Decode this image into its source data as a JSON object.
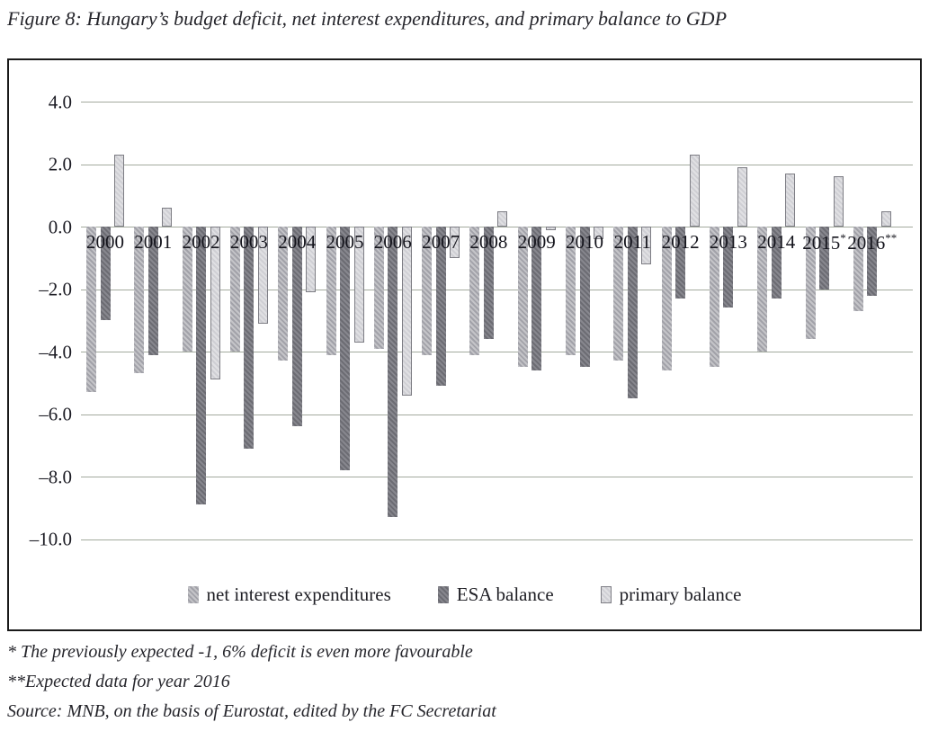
{
  "figure_title": "Figure 8: Hungary’s budget deficit, net interest expenditures, and primary balance to GDP",
  "chart_data": {
    "type": "bar",
    "title": "",
    "xlabel": "",
    "ylabel": "",
    "categories": [
      "2000",
      "2001",
      "2002",
      "2003",
      "2004",
      "2005",
      "2006",
      "2007",
      "2008",
      "2009",
      "2010",
      "2011",
      "2012",
      "2013",
      "2014",
      "2015*",
      "2016**"
    ],
    "series": [
      {
        "name": "net interest expenditures",
        "values": [
          -5.3,
          -4.7,
          -4.0,
          -4.0,
          -4.3,
          -4.1,
          -3.9,
          -4.1,
          -4.1,
          -4.5,
          -4.1,
          -4.3,
          -4.6,
          -4.5,
          -4.0,
          -3.6,
          -2.7
        ]
      },
      {
        "name": "ESA balance",
        "values": [
          -3.0,
          -4.1,
          -8.9,
          -7.1,
          -6.4,
          -7.8,
          -9.3,
          -5.1,
          -3.6,
          -4.6,
          -4.5,
          -5.5,
          -2.3,
          -2.6,
          -2.3,
          -2.0,
          -2.2
        ]
      },
      {
        "name": "primary balance",
        "values": [
          2.3,
          0.6,
          -4.9,
          -3.1,
          -2.1,
          -3.7,
          -5.4,
          -1.0,
          0.5,
          -0.1,
          -0.4,
          -1.2,
          2.3,
          1.9,
          1.7,
          1.6,
          0.5
        ]
      }
    ],
    "yticks": [
      4.0,
      2.0,
      0.0,
      -2.0,
      -4.0,
      -6.0,
      -8.0,
      -10.0
    ],
    "ylim": [
      -10.0,
      4.0
    ],
    "grid": true,
    "legend_position": "bottom-center"
  },
  "footnotes": [
    "* The previously expected -1, 6% deficit is even more favourable",
    "**Expected data for year 2016",
    "Source: MNB, on the basis of Eurostat, edited by the FC Secretariat"
  ],
  "colors": {
    "net_interest_light": "#c4c4c8",
    "net_interest_dark": "#a2a2a9",
    "esa_light": "#87878e",
    "esa_dark": "#6c6c73",
    "primary_light": "#e0e0e3",
    "primary_dark": "#cfcfd4",
    "primary_border": "#7d7d84",
    "gridline": "#a3aa9e",
    "box_border": "#1a1a1a",
    "text": "#1c1c22"
  }
}
